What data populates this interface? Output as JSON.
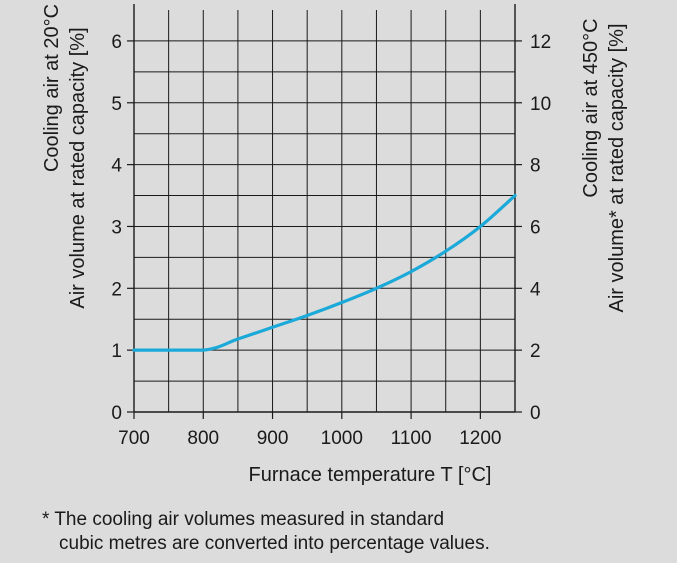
{
  "chart_data": {
    "type": "line",
    "xlabel": "Furnace temperature T [°C]",
    "ylabel_left_line1": "Cooling air at 20°C",
    "ylabel_left_line2": "Air volume at rated capacity [%]",
    "ylabel_right_line1": "Cooling air at 450°C",
    "ylabel_right_line2": "Air volume* at rated capacity [%]",
    "xlim": [
      700,
      1250
    ],
    "ylim_left": [
      0,
      6.5
    ],
    "ylim_right": [
      0,
      13
    ],
    "x_ticks": [
      700,
      800,
      900,
      1000,
      1100,
      1200
    ],
    "y_left_ticks": [
      0,
      1,
      2,
      3,
      4,
      5,
      6
    ],
    "y_right_ticks": [
      0,
      2,
      4,
      6,
      8,
      10,
      12
    ],
    "grid": true,
    "series": [
      {
        "color": "#1aa9d8",
        "x": [
          700,
          800,
          850,
          900,
          950,
          1000,
          1050,
          1100,
          1150,
          1200,
          1250
        ],
        "y": [
          1.0,
          1.0,
          1.18,
          1.37,
          1.56,
          1.77,
          2.0,
          2.27,
          2.6,
          3.0,
          3.5
        ]
      }
    ]
  },
  "footnote": {
    "line1": "* The cooling air volumes measured in standard",
    "line2": "cubic metres are converted into percentage values."
  }
}
